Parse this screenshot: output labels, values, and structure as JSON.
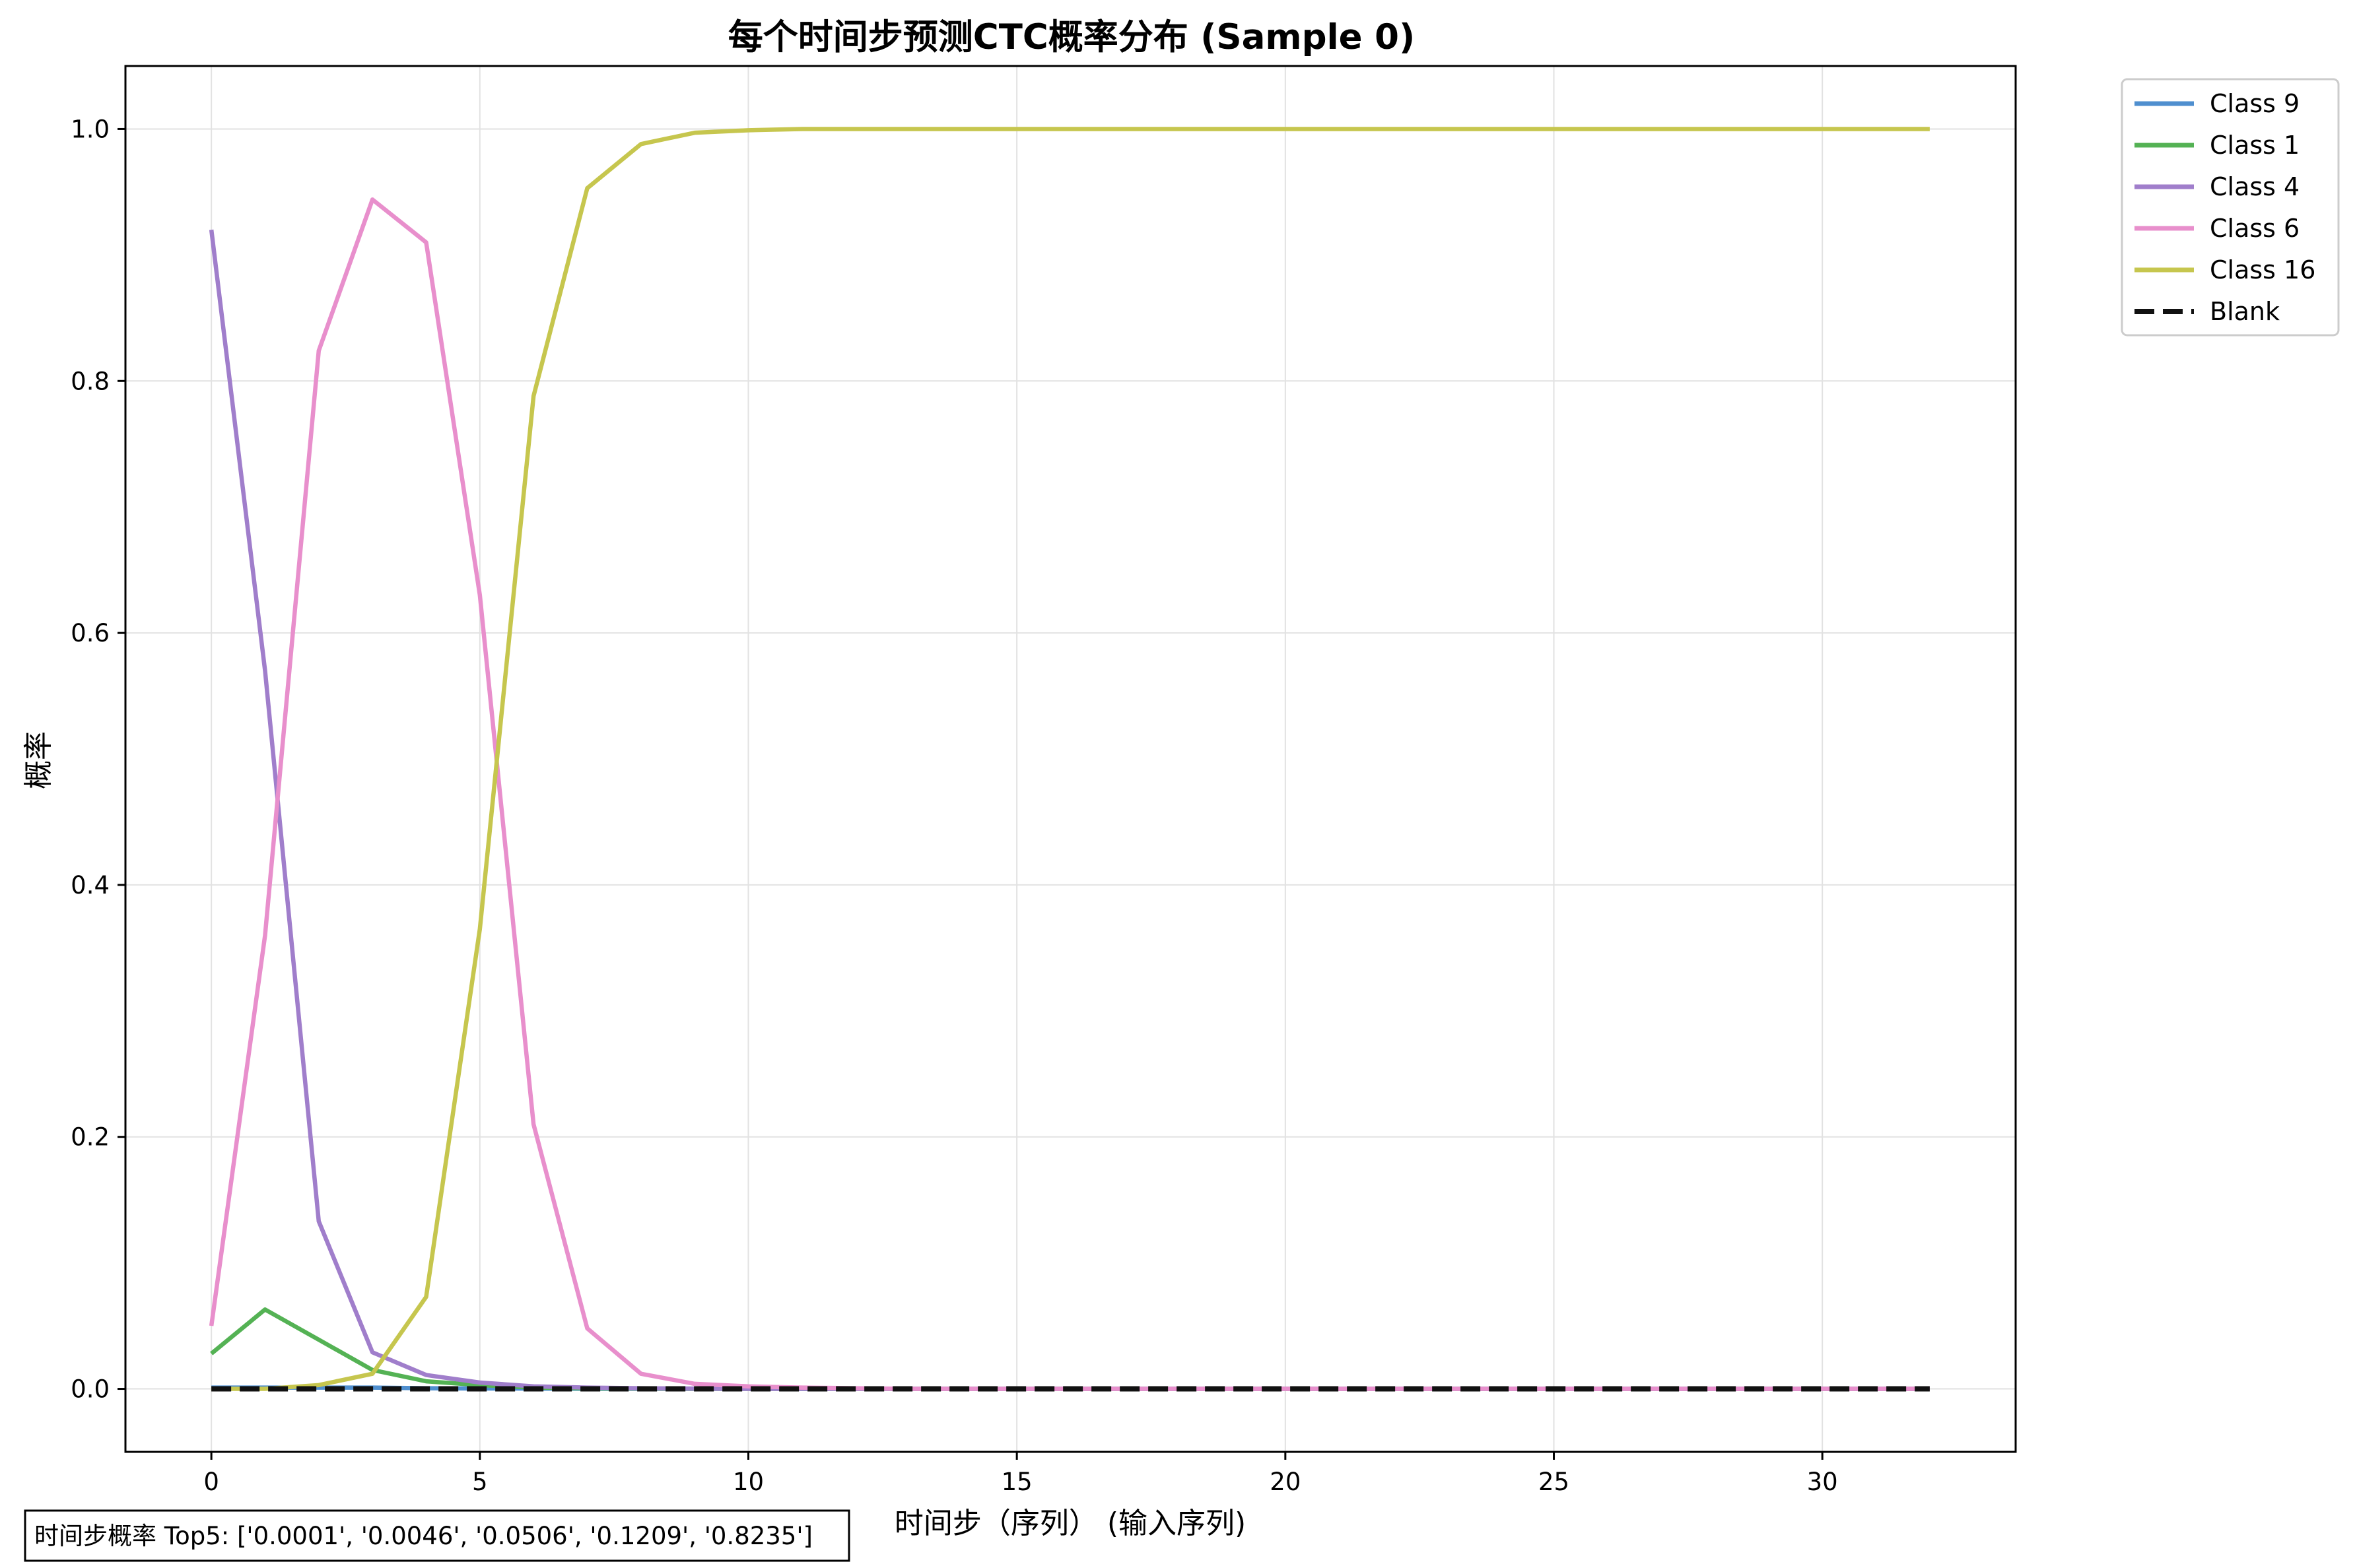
{
  "chart_data": {
    "type": "line",
    "title": "每个时间步预测CTC概率分布 (Sample 0)",
    "xlabel": "时间步（序列） (输入序列)",
    "ylabel": "概率",
    "xlim": [
      -1.6,
      33.6
    ],
    "ylim": [
      -0.05,
      1.05
    ],
    "xticks": [
      0,
      5,
      10,
      15,
      20,
      25,
      30
    ],
    "yticks": [
      0.0,
      0.2,
      0.4,
      0.6,
      0.8,
      1.0
    ],
    "ytick_labels": [
      "0.0",
      "0.2",
      "0.4",
      "0.6",
      "0.8",
      "1.0"
    ],
    "grid": true,
    "legend_position": "outside-top-right",
    "x": [
      0,
      1,
      2,
      3,
      4,
      5,
      6,
      7,
      8,
      9,
      10,
      11,
      12,
      13,
      14,
      15,
      16,
      17,
      18,
      19,
      20,
      21,
      22,
      23,
      24,
      25,
      26,
      27,
      28,
      29,
      30,
      31,
      32
    ],
    "series": [
      {
        "name": "Class 9",
        "color": "#4f8fcf",
        "dash": false,
        "values": [
          0.001,
          0.001,
          0.001,
          0.001,
          0.0005,
          0.0003,
          0.0002,
          0.0001,
          0,
          0,
          0,
          0,
          0,
          0,
          0,
          0,
          0,
          0,
          0,
          0,
          0,
          0,
          0,
          0,
          0,
          0,
          0,
          0,
          0,
          0,
          0,
          0,
          0
        ]
      },
      {
        "name": "Class 1",
        "color": "#54b254",
        "dash": false,
        "values": [
          0.028,
          0.063,
          0.039,
          0.015,
          0.006,
          0.003,
          0.001,
          0.0005,
          0.0002,
          0,
          0,
          0,
          0,
          0,
          0,
          0,
          0,
          0,
          0,
          0,
          0,
          0,
          0,
          0,
          0,
          0,
          0,
          0,
          0,
          0,
          0,
          0,
          0
        ]
      },
      {
        "name": "Class 4",
        "color": "#a07ecb",
        "dash": false,
        "values": [
          0.92,
          0.57,
          0.133,
          0.029,
          0.011,
          0.005,
          0.002,
          0.001,
          0.0005,
          0.0002,
          0,
          0,
          0,
          0,
          0,
          0,
          0,
          0,
          0,
          0,
          0,
          0,
          0,
          0,
          0,
          0,
          0,
          0,
          0,
          0,
          0,
          0,
          0
        ]
      },
      {
        "name": "Class 6",
        "color": "#e88fcc",
        "dash": false,
        "values": [
          0.05,
          0.36,
          0.824,
          0.944,
          0.91,
          0.63,
          0.21,
          0.048,
          0.012,
          0.004,
          0.002,
          0.001,
          0.0005,
          0,
          0,
          0,
          0,
          0,
          0,
          0,
          0,
          0,
          0,
          0,
          0,
          0,
          0,
          0,
          0,
          0,
          0,
          0,
          0
        ]
      },
      {
        "name": "Class 16",
        "color": "#c6c64e",
        "dash": false,
        "values": [
          0,
          0,
          0.003,
          0.012,
          0.073,
          0.365,
          0.788,
          0.953,
          0.988,
          0.997,
          0.999,
          1.0,
          1.0,
          1.0,
          1.0,
          1.0,
          1.0,
          1.0,
          1.0,
          1.0,
          1.0,
          1.0,
          1.0,
          1.0,
          1.0,
          1.0,
          1.0,
          1.0,
          1.0,
          1.0,
          1.0,
          1.0,
          1.0
        ]
      },
      {
        "name": "Blank",
        "color": "#111111",
        "dash": true,
        "values": [
          0,
          0,
          0,
          0,
          0,
          0,
          0,
          0,
          0,
          0,
          0,
          0,
          0,
          0,
          0,
          0,
          0,
          0,
          0,
          0,
          0,
          0,
          0,
          0,
          0,
          0,
          0,
          0,
          0,
          0,
          0,
          0,
          0
        ]
      }
    ],
    "annotation": "时间步概率 Top5: ['0.0001', '0.0046', '0.0506', '0.1209', '0.8235']"
  }
}
